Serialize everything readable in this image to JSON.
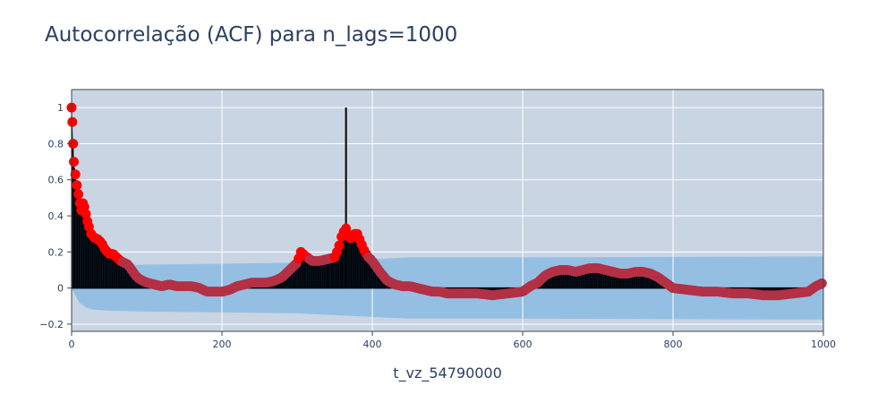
{
  "chart_data": {
    "type": "line",
    "title": "Autocorrelação (ACF) para n_lags=1000",
    "xlabel": "t_vz_54790000",
    "ylabel": "",
    "xlim": [
      0,
      1000
    ],
    "ylim": [
      -0.24,
      1.1
    ],
    "x_ticks": [
      0,
      200,
      400,
      600,
      800,
      1000
    ],
    "y_ticks": [
      -0.2,
      0,
      0.2,
      0.4,
      0.6,
      0.8,
      1
    ],
    "x_tick_labels": [
      "0",
      "200",
      "400",
      "600",
      "800",
      "1000"
    ],
    "y_tick_labels": [
      "−0.2",
      "0",
      "0.2",
      "0.4",
      "0.6",
      "0.8",
      "1"
    ],
    "grid": true,
    "acf_curve": {
      "x": [
        0,
        1,
        2,
        3,
        5,
        7,
        9,
        11,
        13,
        15,
        17,
        19,
        21,
        23,
        26,
        30,
        35,
        40,
        45,
        50,
        55,
        60,
        65,
        70,
        75,
        80,
        85,
        90,
        100,
        110,
        120,
        130,
        140,
        150,
        160,
        170,
        180,
        190,
        200,
        210,
        220,
        230,
        240,
        250,
        260,
        270,
        280,
        290,
        300,
        305,
        310,
        320,
        330,
        340,
        350,
        355,
        360,
        365,
        370,
        375,
        380,
        385,
        390,
        395,
        400,
        410,
        420,
        430,
        440,
        450,
        460,
        470,
        480,
        490,
        500,
        520,
        540,
        560,
        580,
        600,
        610,
        620,
        630,
        640,
        650,
        660,
        670,
        680,
        690,
        700,
        710,
        720,
        730,
        740,
        750,
        760,
        770,
        780,
        790,
        800,
        820,
        840,
        860,
        880,
        900,
        920,
        940,
        960,
        980,
        990,
        1000
      ],
      "y": [
        1.0,
        0.92,
        0.8,
        0.7,
        0.63,
        0.57,
        0.52,
        0.47,
        0.43,
        0.47,
        0.45,
        0.41,
        0.37,
        0.34,
        0.3,
        0.28,
        0.27,
        0.25,
        0.21,
        0.19,
        0.19,
        0.17,
        0.15,
        0.14,
        0.13,
        0.1,
        0.07,
        0.05,
        0.03,
        0.02,
        0.01,
        0.02,
        0.01,
        0.01,
        0.01,
        0.0,
        -0.02,
        -0.02,
        -0.02,
        -0.01,
        0.01,
        0.02,
        0.03,
        0.03,
        0.03,
        0.04,
        0.06,
        0.1,
        0.14,
        0.2,
        0.18,
        0.15,
        0.15,
        0.16,
        0.17,
        0.22,
        0.3,
        0.33,
        0.27,
        0.3,
        0.3,
        0.25,
        0.2,
        0.17,
        0.15,
        0.09,
        0.04,
        0.02,
        0.01,
        0.01,
        0.0,
        -0.01,
        -0.02,
        -0.02,
        -0.03,
        -0.03,
        -0.03,
        -0.04,
        -0.03,
        -0.02,
        0.01,
        0.03,
        0.07,
        0.09,
        0.1,
        0.1,
        0.09,
        0.1,
        0.11,
        0.11,
        0.1,
        0.09,
        0.08,
        0.08,
        0.09,
        0.09,
        0.08,
        0.06,
        0.03,
        0.0,
        -0.01,
        -0.02,
        -0.02,
        -0.03,
        -0.03,
        -0.04,
        -0.04,
        -0.03,
        -0.02,
        0.01,
        0.03
      ]
    },
    "confidence_band": {
      "x": [
        0,
        5,
        10,
        20,
        30,
        50,
        100,
        200,
        300,
        350,
        400,
        450,
        600,
        1000
      ],
      "upper": [
        0.0,
        0.04,
        0.08,
        0.11,
        0.12,
        0.125,
        0.13,
        0.135,
        0.14,
        0.15,
        0.16,
        0.17,
        0.17,
        0.175
      ],
      "lower": [
        0.0,
        -0.04,
        -0.08,
        -0.11,
        -0.12,
        -0.125,
        -0.13,
        -0.135,
        -0.14,
        -0.15,
        -0.16,
        -0.17,
        -0.17,
        -0.175
      ]
    },
    "highlight_lag": {
      "x": 365,
      "value": 1.0
    },
    "colors": {
      "plot_bg": "#c9d5e3",
      "band": "#94bfe3",
      "fill": "#0b2740",
      "stems": "#000000",
      "marker_strong": "#ff0000",
      "marker_weak": "#b33045",
      "text": "#2a3f5f"
    }
  }
}
